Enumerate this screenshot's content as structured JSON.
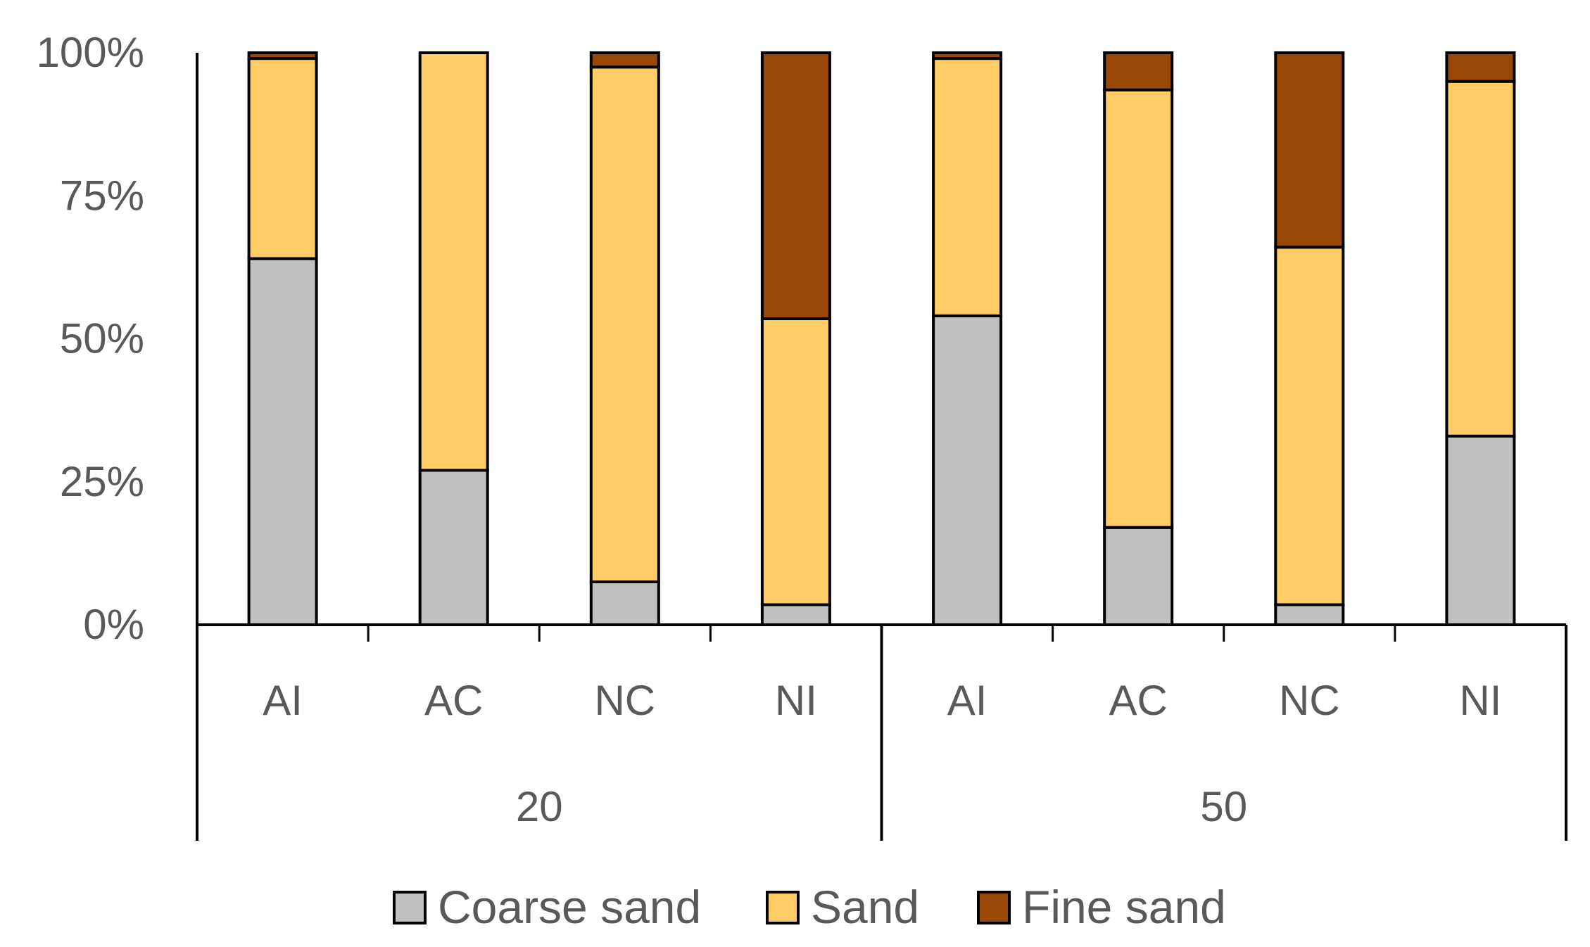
{
  "chart_data": {
    "type": "bar",
    "stacked": true,
    "percent_stacked": true,
    "categories": [
      "AI",
      "AC",
      "NC",
      "NI",
      "AI",
      "AC",
      "NC",
      "NI"
    ],
    "groups": [
      {
        "label": "20",
        "categories": [
          "AI",
          "AC",
          "NC",
          "NI"
        ]
      },
      {
        "label": "50",
        "categories": [
          "AI",
          "AC",
          "NC",
          "NI"
        ]
      }
    ],
    "series": [
      {
        "name": "Coarse sand",
        "color": "#c0c0c0",
        "values": [
          64,
          27,
          7.5,
          3.5,
          54,
          17,
          3.5,
          33
        ]
      },
      {
        "name": "Sand",
        "color": "#ffcc66",
        "values": [
          35,
          73,
          90,
          50,
          45,
          76.5,
          62.5,
          62
        ]
      },
      {
        "name": "Fine sand",
        "color": "#994707",
        "values": [
          1,
          0,
          2.5,
          46.5,
          1,
          6.5,
          34,
          5
        ]
      }
    ],
    "yticks": [
      "0%",
      "25%",
      "50%",
      "75%",
      "100%"
    ],
    "ylim": [
      0,
      100
    ],
    "title": "",
    "xlabel": "",
    "ylabel": "",
    "legend": {
      "position": "bottom"
    },
    "grid": false
  }
}
